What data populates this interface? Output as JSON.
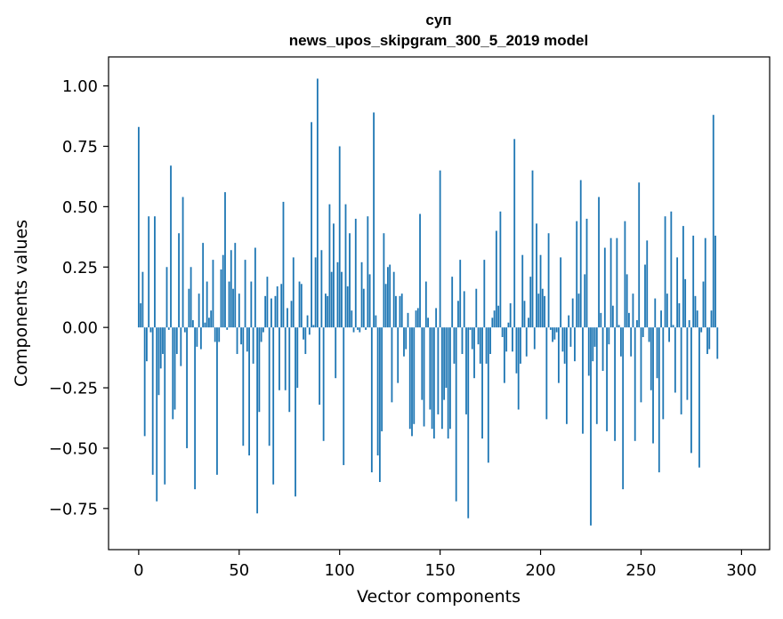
{
  "chart_data": {
    "type": "bar",
    "title": "суп",
    "subtitle": "news_upos_skipgram_300_5_2019 model",
    "xlabel": "Vector components",
    "ylabel": "Components values",
    "xlim": [
      -15,
      314
    ],
    "ylim": [
      -0.92,
      1.12
    ],
    "xticks": [
      0,
      50,
      100,
      150,
      200,
      250,
      300
    ],
    "yticks": [
      -0.75,
      -0.5,
      -0.25,
      0.0,
      0.25,
      0.5,
      0.75,
      1.0
    ],
    "xtick_labels": [
      "0",
      "50",
      "100",
      "150",
      "200",
      "250",
      "300"
    ],
    "ytick_labels": [
      "−0.75",
      "−0.50",
      "−0.25",
      "0.00",
      "0.25",
      "0.50",
      "0.75",
      "1.00"
    ],
    "grid": false,
    "bar_color": "#1f77b4",
    "values": [
      0.83,
      0.1,
      0.23,
      -0.45,
      -0.14,
      0.46,
      -0.02,
      -0.61,
      0.46,
      -0.72,
      -0.28,
      -0.17,
      -0.11,
      -0.65,
      0.25,
      -0.01,
      0.67,
      -0.38,
      -0.34,
      -0.11,
      0.39,
      -0.16,
      0.54,
      -0.02,
      -0.5,
      0.16,
      0.25,
      0.03,
      -0.67,
      -0.08,
      0.14,
      -0.09,
      0.35,
      0.02,
      0.19,
      0.04,
      0.07,
      0.28,
      -0.06,
      -0.61,
      -0.06,
      0.24,
      0.3,
      0.56,
      -0.01,
      0.19,
      0.32,
      0.16,
      0.35,
      -0.11,
      0.14,
      -0.07,
      -0.49,
      0.28,
      -0.1,
      -0.53,
      0.19,
      -0.15,
      0.33,
      -0.77,
      -0.35,
      -0.06,
      -0.02,
      0.13,
      0.21,
      -0.49,
      0.12,
      -0.65,
      0.13,
      0.17,
      -0.26,
      0.18,
      0.52,
      -0.26,
      0.08,
      -0.35,
      0.11,
      0.29,
      -0.7,
      -0.25,
      0.19,
      0.18,
      -0.05,
      -0.11,
      0.05,
      -0.03,
      0.85,
      0.01,
      0.29,
      1.03,
      -0.32,
      0.32,
      -0.47,
      0.14,
      0.13,
      0.51,
      0.23,
      0.43,
      -0.21,
      0.27,
      0.75,
      0.23,
      -0.57,
      0.51,
      0.17,
      0.39,
      0.07,
      -0.02,
      0.45,
      -0.01,
      -0.02,
      0.27,
      0.16,
      -0.01,
      0.46,
      0.22,
      -0.6,
      0.89,
      0.05,
      -0.53,
      -0.64,
      -0.43,
      0.39,
      0.18,
      0.25,
      0.26,
      -0.31,
      0.23,
      0.13,
      -0.23,
      0.13,
      0.14,
      -0.12,
      -0.09,
      0.06,
      -0.42,
      -0.45,
      -0.4,
      0.07,
      0.08,
      0.47,
      -0.3,
      -0.41,
      0.19,
      0.04,
      -0.34,
      -0.42,
      -0.46,
      0.08,
      -0.36,
      0.65,
      -0.42,
      -0.3,
      -0.25,
      -0.46,
      -0.42,
      0.21,
      -0.15,
      -0.72,
      0.11,
      0.28,
      -0.11,
      0.15,
      -0.36,
      -0.79,
      -0.01,
      -0.09,
      -0.21,
      0.16,
      -0.07,
      -0.15,
      -0.46,
      0.28,
      -0.15,
      -0.56,
      -0.11,
      0.04,
      0.07,
      0.4,
      0.09,
      0.48,
      -0.04,
      -0.23,
      -0.1,
      0.02,
      0.1,
      -0.1,
      0.78,
      -0.19,
      -0.34,
      -0.15,
      0.3,
      0.11,
      -0.12,
      0.04,
      0.21,
      0.65,
      -0.09,
      0.43,
      0.14,
      0.3,
      0.16,
      0.13,
      -0.38,
      0.39,
      -0.01,
      -0.06,
      -0.05,
      -0.02,
      -0.23,
      0.29,
      -0.1,
      -0.15,
      -0.4,
      0.05,
      -0.08,
      0.12,
      -0.14,
      0.44,
      0.14,
      0.61,
      -0.44,
      0.22,
      0.45,
      -0.2,
      -0.82,
      -0.14,
      -0.08,
      -0.4,
      0.54,
      0.06,
      -0.18,
      0.33,
      -0.43,
      -0.07,
      0.37,
      0.09,
      -0.47,
      0.37,
      0.01,
      -0.12,
      -0.67,
      0.44,
      0.22,
      0.06,
      -0.12,
      0.14,
      -0.47,
      0.03,
      0.6,
      -0.31,
      -0.04,
      0.26,
      0.36,
      -0.06,
      -0.26,
      -0.48,
      0.12,
      -0.21,
      -0.6,
      0.07,
      -0.38,
      0.46,
      0.14,
      -0.06,
      0.48,
      0.01,
      -0.27,
      0.29,
      0.1,
      -0.36,
      0.42,
      0.2,
      -0.3,
      0.03,
      -0.52,
      0.38,
      0.13,
      0.07,
      -0.58,
      -0.02,
      0.19,
      0.37,
      -0.11,
      -0.09,
      0.07,
      0.88,
      0.38,
      -0.13
    ]
  }
}
